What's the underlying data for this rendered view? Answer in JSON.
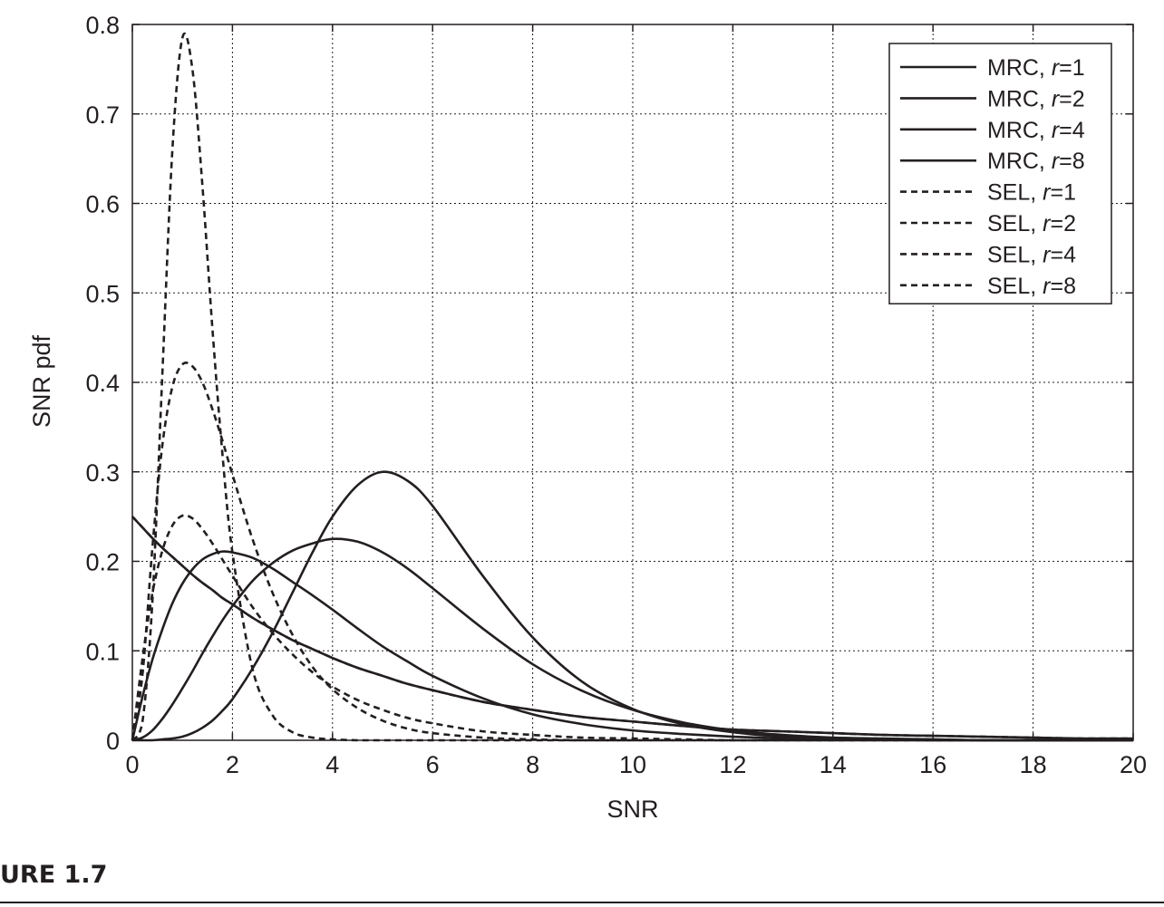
{
  "figure": {
    "caption": "URE 1.7"
  },
  "chart_data": {
    "type": "line",
    "xlabel": "SNR",
    "ylabel": "SNR pdf",
    "xlim": [
      0,
      20
    ],
    "ylim": [
      0,
      0.8
    ],
    "xticks": [
      0,
      2,
      4,
      6,
      8,
      10,
      12,
      14,
      16,
      18,
      20
    ],
    "yticks": [
      0,
      0.1,
      0.2,
      0.3,
      0.4,
      0.5,
      0.6,
      0.7,
      0.8
    ],
    "xtick_labels": [
      "0",
      "2",
      "4",
      "6",
      "8",
      "10",
      "12",
      "14",
      "16",
      "18",
      "20"
    ],
    "ytick_labels": [
      "0",
      "0.1",
      "0.2",
      "0.3",
      "0.4",
      "0.5",
      "0.6",
      "0.7",
      "0.8"
    ],
    "grid": true,
    "legend_position": "top-right",
    "line_color": "#231f20",
    "x": [
      0,
      0.2,
      0.4,
      0.6,
      0.8,
      1.0,
      1.2,
      1.4,
      1.6,
      1.8,
      2.0,
      2.4,
      2.8,
      3.2,
      3.6,
      4.0,
      4.5,
      5.0,
      5.5,
      6.0,
      7.0,
      8.0,
      9.0,
      10.0,
      11.0,
      12.0,
      13.0,
      14.0,
      15.0,
      16.0,
      17.0,
      18.0,
      19.0,
      20.0
    ],
    "series": [
      {
        "legend_prefix": "MRC, ",
        "legend_var": "r",
        "legend_value": "1",
        "style": "solid",
        "values": [
          0.25,
          0.238,
          0.226,
          0.215,
          0.205,
          0.195,
          0.185,
          0.176,
          0.168,
          0.159,
          0.152,
          0.137,
          0.124,
          0.112,
          0.102,
          0.092,
          0.081,
          0.072,
          0.063,
          0.056,
          0.043,
          0.034,
          0.026,
          0.021,
          0.016,
          0.012,
          0.01,
          0.008,
          0.006,
          0.005,
          0.004,
          0.003,
          0.002,
          0.002
        ]
      },
      {
        "legend_prefix": "MRC, ",
        "legend_var": "r",
        "legend_value": "2",
        "style": "solid",
        "values": [
          0,
          0.048,
          0.09,
          0.124,
          0.153,
          0.175,
          0.191,
          0.202,
          0.208,
          0.211,
          0.21,
          0.204,
          0.192,
          0.177,
          0.162,
          0.146,
          0.125,
          0.105,
          0.088,
          0.072,
          0.047,
          0.029,
          0.018,
          0.011,
          0.007,
          0.004,
          0.002,
          0.001,
          0.001,
          0.001,
          0,
          0,
          0,
          0
        ]
      },
      {
        "legend_prefix": "MRC, ",
        "legend_var": "r",
        "legend_value": "4",
        "style": "solid",
        "values": [
          0,
          0.003,
          0.011,
          0.024,
          0.04,
          0.058,
          0.077,
          0.097,
          0.116,
          0.134,
          0.15,
          0.178,
          0.198,
          0.212,
          0.22,
          0.225,
          0.222,
          0.21,
          0.192,
          0.17,
          0.125,
          0.085,
          0.055,
          0.034,
          0.02,
          0.011,
          0.006,
          0.003,
          0.002,
          0.001,
          0,
          0,
          0,
          0
        ]
      },
      {
        "legend_prefix": "MRC, ",
        "legend_var": "r",
        "legend_value": "8",
        "style": "solid",
        "values": [
          0,
          0,
          0,
          0.001,
          0.002,
          0.004,
          0.008,
          0.014,
          0.022,
          0.033,
          0.046,
          0.08,
          0.12,
          0.165,
          0.21,
          0.25,
          0.285,
          0.3,
          0.29,
          0.262,
          0.184,
          0.115,
          0.065,
          0.035,
          0.018,
          0.009,
          0.004,
          0.002,
          0.001,
          0,
          0,
          0,
          0,
          0
        ]
      },
      {
        "legend_prefix": "SEL, ",
        "legend_var": "r",
        "legend_value": "1",
        "style": "dashed",
        "values": [
          0.25,
          0.238,
          0.226,
          0.215,
          0.205,
          0.195,
          0.185,
          0.176,
          0.168,
          0.159,
          0.152,
          0.137,
          0.124,
          0.112,
          0.102,
          0.092,
          0.081,
          0.072,
          0.063,
          0.056,
          0.043,
          0.034,
          0.026,
          0.021,
          0.016,
          0.012,
          0.01,
          0.008,
          0.006,
          0.005,
          0.004,
          0.003,
          0.002,
          0.002
        ]
      },
      {
        "legend_prefix": "SEL, ",
        "legend_var": "r",
        "legend_value": "2",
        "style": "dashed",
        "values": [
          0,
          0.09,
          0.164,
          0.212,
          0.24,
          0.251,
          0.248,
          0.236,
          0.22,
          0.202,
          0.184,
          0.149,
          0.12,
          0.096,
          0.076,
          0.06,
          0.045,
          0.034,
          0.025,
          0.019,
          0.01,
          0.006,
          0.003,
          0.002,
          0.001,
          0,
          0,
          0,
          0,
          0,
          0,
          0,
          0,
          0
        ]
      },
      {
        "legend_prefix": "SEL, ",
        "legend_var": "r",
        "legend_value": "4",
        "style": "dashed",
        "values": [
          0,
          0.072,
          0.215,
          0.33,
          0.395,
          0.42,
          0.418,
          0.4,
          0.37,
          0.335,
          0.297,
          0.225,
          0.165,
          0.118,
          0.082,
          0.057,
          0.036,
          0.022,
          0.013,
          0.008,
          0.003,
          0.001,
          0,
          0,
          0,
          0,
          0,
          0,
          0,
          0,
          0,
          0,
          0,
          0
        ]
      },
      {
        "legend_prefix": "SEL, ",
        "legend_var": "r",
        "legend_value": "8",
        "style": "dashed",
        "values": [
          0,
          0.02,
          0.155,
          0.41,
          0.66,
          0.785,
          0.75,
          0.62,
          0.46,
          0.32,
          0.21,
          0.08,
          0.028,
          0.009,
          0.003,
          0.001,
          0,
          0,
          0,
          0,
          0,
          0,
          0,
          0,
          0,
          0,
          0,
          0,
          0,
          0,
          0,
          0,
          0,
          0
        ]
      }
    ]
  }
}
